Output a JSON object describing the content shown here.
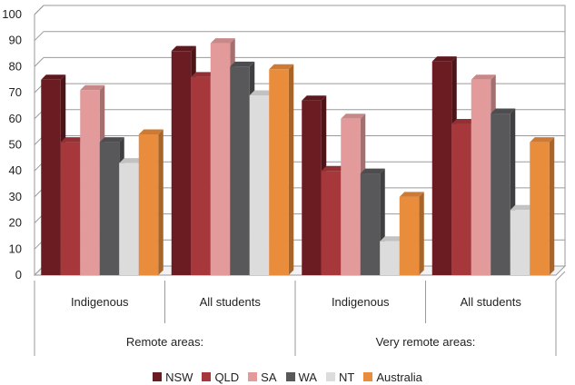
{
  "chart_data": {
    "type": "bar",
    "groups": [
      {
        "label": "Remote areas:",
        "categories": [
          "Indigenous",
          "All students"
        ]
      },
      {
        "label": "Very remote areas:",
        "categories": [
          "Indigenous",
          "All students"
        ]
      }
    ],
    "categories": [
      "Indigenous",
      "All students",
      "Indigenous",
      "All students"
    ],
    "series": [
      {
        "name": "NSW",
        "color": "#6b1c22",
        "values": [
          75,
          86,
          67,
          82
        ]
      },
      {
        "name": "QLD",
        "color": "#a6373b",
        "values": [
          51,
          76,
          40,
          58
        ]
      },
      {
        "name": "SA",
        "color": "#e39a9a",
        "values": [
          71,
          89,
          60,
          75
        ]
      },
      {
        "name": "WA",
        "color": "#58585a",
        "values": [
          51,
          80,
          39,
          62
        ]
      },
      {
        "name": "NT",
        "color": "#dcdcdc",
        "values": [
          43,
          69,
          13,
          25
        ]
      },
      {
        "name": "Australia",
        "color": "#e98c3b",
        "values": [
          54,
          79,
          30,
          51
        ]
      }
    ],
    "ylim": [
      0,
      100
    ],
    "yticks": [
      "0",
      "10",
      "20",
      "30",
      "40",
      "50",
      "60",
      "70",
      "80",
      "90",
      "100"
    ],
    "grid": true,
    "legend": "bottom",
    "title": "",
    "xlabel": "",
    "ylabel": ""
  }
}
